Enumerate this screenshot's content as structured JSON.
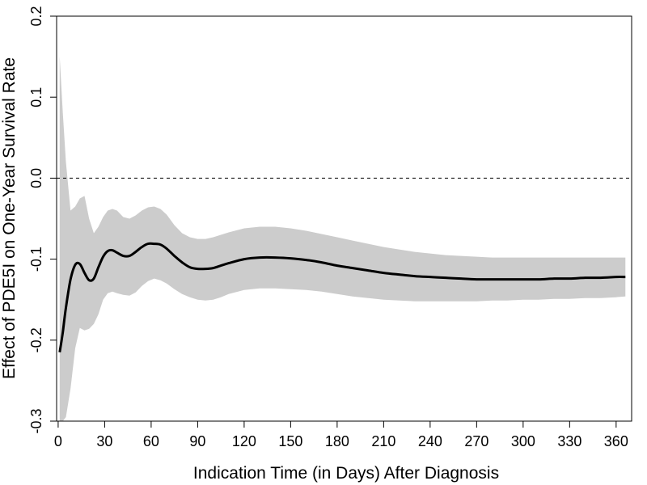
{
  "chart_data": {
    "type": "line",
    "xlabel": "Indication Time (in Days) After Diagnosis",
    "ylabel": "Effect of PDE5I on One-Year Survival Rate",
    "xlim": [
      -1,
      370
    ],
    "ylim": [
      -0.3,
      0.2
    ],
    "x_ticks": [
      0,
      30,
      60,
      90,
      120,
      150,
      180,
      210,
      240,
      270,
      300,
      330,
      360
    ],
    "x_tick_labels": [
      "0",
      "30",
      "60",
      "90",
      "120",
      "150",
      "180",
      "210",
      "240",
      "270",
      "300",
      "330",
      "360"
    ],
    "y_ticks": [
      -0.3,
      -0.2,
      -0.1,
      0.0,
      0.1,
      0.2
    ],
    "y_tick_labels": [
      "-0.3",
      "-0.2",
      "-0.1",
      "0.0",
      "0.1",
      "0.2"
    ],
    "reference_line": {
      "y": 0.0,
      "style": "dashed"
    },
    "grid": false,
    "series": [
      {
        "kind": "estimate",
        "color": "#000000",
        "x": [
          1,
          3,
          5,
          8,
          11,
          14,
          17,
          20,
          23,
          26,
          29,
          32,
          35,
          38,
          42,
          46,
          50,
          54,
          58,
          62,
          66,
          70,
          75,
          80,
          85,
          90,
          95,
          100,
          105,
          110,
          120,
          130,
          140,
          150,
          160,
          170,
          180,
          190,
          200,
          210,
          220,
          230,
          240,
          250,
          260,
          270,
          280,
          290,
          300,
          310,
          320,
          330,
          340,
          350,
          360,
          366
        ],
        "y": [
          -0.215,
          -0.19,
          -0.16,
          -0.125,
          -0.107,
          -0.106,
          -0.117,
          -0.126,
          -0.124,
          -0.11,
          -0.097,
          -0.09,
          -0.089,
          -0.092,
          -0.096,
          -0.096,
          -0.091,
          -0.085,
          -0.081,
          -0.081,
          -0.082,
          -0.087,
          -0.096,
          -0.104,
          -0.11,
          -0.112,
          -0.112,
          -0.111,
          -0.108,
          -0.105,
          -0.1,
          -0.098,
          -0.098,
          -0.099,
          -0.101,
          -0.104,
          -0.108,
          -0.111,
          -0.114,
          -0.117,
          -0.119,
          -0.121,
          -0.122,
          -0.123,
          -0.124,
          -0.125,
          -0.125,
          -0.125,
          -0.125,
          -0.125,
          -0.124,
          -0.124,
          -0.123,
          -0.123,
          -0.122,
          -0.122
        ]
      },
      {
        "kind": "confidence-band",
        "color": "#cccccc",
        "x": [
          1,
          3,
          5,
          8,
          11,
          14,
          17,
          20,
          23,
          26,
          29,
          32,
          35,
          38,
          42,
          46,
          50,
          54,
          58,
          62,
          66,
          70,
          75,
          80,
          85,
          90,
          95,
          100,
          105,
          110,
          120,
          130,
          140,
          150,
          160,
          170,
          180,
          190,
          200,
          210,
          220,
          230,
          240,
          250,
          260,
          270,
          280,
          290,
          300,
          310,
          320,
          330,
          340,
          350,
          360,
          366
        ],
        "upper": [
          0.15,
          0.08,
          0.02,
          -0.04,
          -0.035,
          -0.025,
          -0.022,
          -0.05,
          -0.068,
          -0.06,
          -0.048,
          -0.04,
          -0.038,
          -0.04,
          -0.048,
          -0.05,
          -0.046,
          -0.04,
          -0.036,
          -0.035,
          -0.038,
          -0.045,
          -0.058,
          -0.068,
          -0.073,
          -0.075,
          -0.075,
          -0.073,
          -0.07,
          -0.067,
          -0.062,
          -0.06,
          -0.06,
          -0.062,
          -0.065,
          -0.069,
          -0.073,
          -0.077,
          -0.081,
          -0.085,
          -0.088,
          -0.091,
          -0.093,
          -0.095,
          -0.096,
          -0.097,
          -0.098,
          -0.098,
          -0.098,
          -0.098,
          -0.098,
          -0.098,
          -0.098,
          -0.098,
          -0.098,
          -0.098
        ],
        "lower": [
          -0.3,
          -0.3,
          -0.295,
          -0.26,
          -0.21,
          -0.185,
          -0.188,
          -0.186,
          -0.18,
          -0.168,
          -0.15,
          -0.142,
          -0.14,
          -0.142,
          -0.144,
          -0.145,
          -0.141,
          -0.133,
          -0.127,
          -0.124,
          -0.126,
          -0.13,
          -0.137,
          -0.143,
          -0.147,
          -0.15,
          -0.151,
          -0.15,
          -0.147,
          -0.143,
          -0.138,
          -0.136,
          -0.136,
          -0.137,
          -0.138,
          -0.14,
          -0.143,
          -0.146,
          -0.148,
          -0.15,
          -0.151,
          -0.152,
          -0.152,
          -0.152,
          -0.152,
          -0.152,
          -0.151,
          -0.151,
          -0.15,
          -0.15,
          -0.149,
          -0.149,
          -0.148,
          -0.148,
          -0.147,
          -0.146
        ]
      }
    ]
  }
}
